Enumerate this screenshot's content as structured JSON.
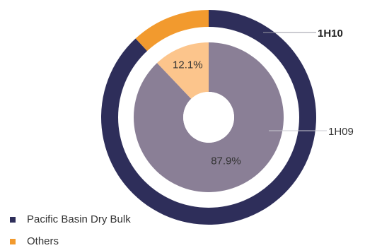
{
  "chart_data": {
    "type": "pie",
    "subtype": "nested-donut",
    "rings": [
      {
        "name": "1H10",
        "position": "outer",
        "series": [
          {
            "name": "Pacific Basin Dry Bulk",
            "value": 88.1,
            "label": "88.1%"
          },
          {
            "name": "Others",
            "value": 11.9,
            "label": "11.9%"
          }
        ]
      },
      {
        "name": "1H09",
        "position": "inner",
        "series": [
          {
            "name": "Pacific Basin Dry Bulk",
            "value": 87.9,
            "label": "87.9%"
          },
          {
            "name": "Others",
            "value": 12.1,
            "label": "12.1%"
          }
        ]
      }
    ],
    "legend": {
      "placement": "bottom-left",
      "entries": [
        "Pacific Basin Dry Bulk",
        "Others"
      ]
    }
  },
  "colors": {
    "outer": {
      "Pacific Basin Dry Bulk": "#2e2e5a",
      "Others": "#f29a2e"
    },
    "inner": {
      "Pacific Basin Dry Bulk": "#8a7f96",
      "Others": "#fcc58c"
    },
    "legend": {
      "Pacific Basin Dry Bulk": "#2e2e5a",
      "Others": "#f29a2e"
    }
  }
}
